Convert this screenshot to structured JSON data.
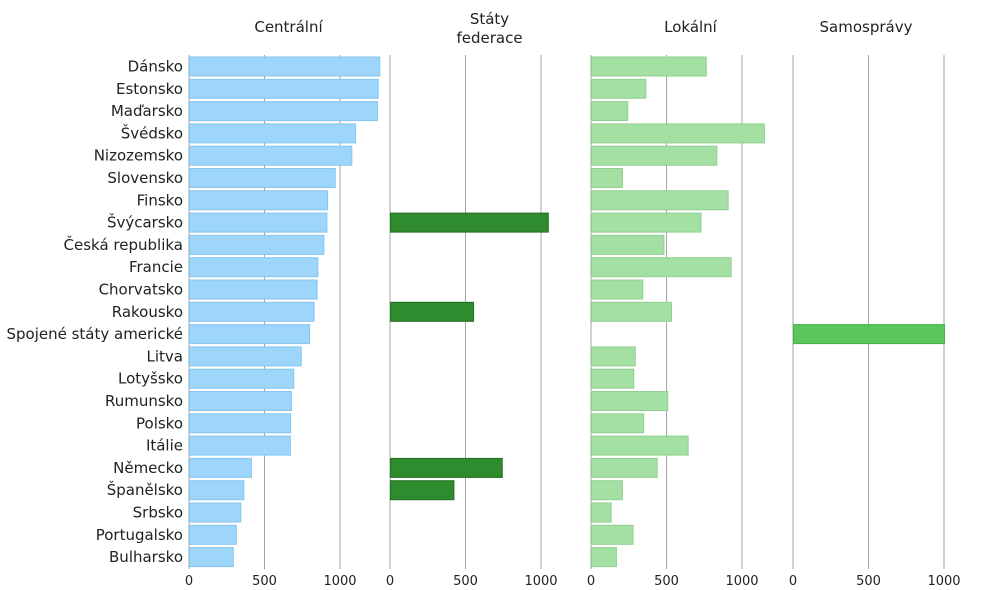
{
  "chart_data": {
    "type": "bar",
    "orientation": "horizontal",
    "categories": [
      "Dánsko",
      "Estonsko",
      "Maďarsko",
      "Švédsko",
      "Nizozemsko",
      "Slovensko",
      "Finsko",
      "Švýcarsko",
      "Česká republika",
      "Francie",
      "Chorvatsko",
      "Rakousko",
      "Spojené státy americké",
      "Litva",
      "Lotyšsko",
      "Rumunsko",
      "Polsko",
      "Itálie",
      "Německo",
      "Španělsko",
      "Srbsko",
      "Portugalsko",
      "Bulharsko"
    ],
    "panels": [
      {
        "title": "Centrální",
        "xlim": [
          0,
          1300
        ],
        "ticks": [
          0,
          500,
          1000
        ],
        "tick_labels": [
          "0",
          "500",
          "1000"
        ],
        "color": "#9dd6fa",
        "stroke": "#84c6f2",
        "values": [
          1260,
          1250,
          1245,
          1100,
          1075,
          965,
          915,
          910,
          890,
          850,
          845,
          825,
          795,
          740,
          690,
          675,
          670,
          668,
          410,
          360,
          340,
          310,
          290
        ]
      },
      {
        "title": "Státy federace",
        "xlim": [
          0,
          1300
        ],
        "ticks": [
          0,
          500,
          1000
        ],
        "tick_labels": [
          "0",
          "500",
          "1000"
        ],
        "color": "#2e8b2e",
        "stroke": "#236e23",
        "values": [
          0,
          0,
          0,
          0,
          0,
          0,
          0,
          1045,
          0,
          0,
          0,
          550,
          0,
          0,
          0,
          0,
          0,
          0,
          740,
          420,
          0,
          0,
          0
        ]
      },
      {
        "title": "Lokální",
        "xlim": [
          0,
          1300
        ],
        "ticks": [
          0,
          500,
          1000
        ],
        "tick_labels": [
          "0",
          "500",
          "1000"
        ],
        "color": "#a4e0a4",
        "stroke": "#8fd08f",
        "values": [
          760,
          360,
          240,
          1145,
          830,
          205,
          905,
          725,
          480,
          925,
          340,
          530,
          0,
          290,
          280,
          505,
          345,
          640,
          435,
          205,
          130,
          275,
          165
        ]
      },
      {
        "title": "Samosprávy",
        "xlim": [
          0,
          1000
        ],
        "ticks": [
          0,
          500,
          1000
        ],
        "tick_labels": [
          "0",
          "500",
          "1000"
        ],
        "color": "#5cc65c",
        "stroke": "#49b049",
        "values": [
          0,
          0,
          0,
          0,
          0,
          0,
          0,
          0,
          0,
          0,
          0,
          0,
          1000,
          0,
          0,
          0,
          0,
          0,
          0,
          0,
          0,
          0,
          0
        ]
      }
    ],
    "grid": true,
    "legend": "none"
  }
}
